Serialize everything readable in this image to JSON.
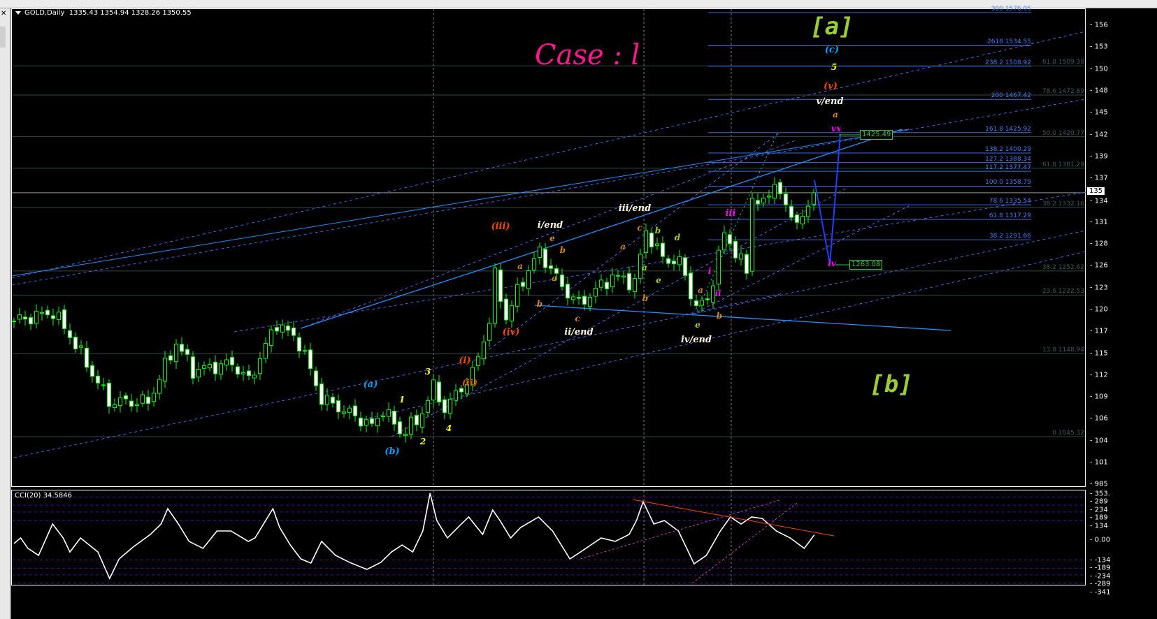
{
  "window": {
    "symbol_title": "GOLD,Daily",
    "ohlc": "1335.43 1354.94 1328.26 1350.55",
    "close_icon": "close-icon"
  },
  "annotation": {
    "case_title": "Case : l"
  },
  "price_axis": {
    "labels": [
      "156",
      "153",
      "150",
      "148",
      "145",
      "142",
      "139",
      "137",
      "134",
      "131",
      "128",
      "126",
      "123",
      "120",
      "117",
      "115",
      "112",
      "109",
      "106",
      "104",
      "101",
      "985"
    ],
    "current_price_label": "135",
    "current_price": 1350.55
  },
  "price_tags": [
    {
      "text": "1425.49",
      "color": "#2ecc40"
    },
    {
      "text": "1263.08",
      "color": "#2ecc40"
    }
  ],
  "fib_projection": [
    {
      "level": "300",
      "price": "1576.05"
    },
    {
      "level": "2618",
      "price": "1534.55"
    },
    {
      "level": "238.2",
      "price": "1508.92"
    },
    {
      "level": "200",
      "price": "1467.42"
    },
    {
      "level": "161.8",
      "price": "1425.92"
    },
    {
      "level": "138.2",
      "price": "1400.29"
    },
    {
      "level": "127.2",
      "price": "1388.34"
    },
    {
      "level": "117.2",
      "price": "1377.47"
    },
    {
      "level": "100.0",
      "price": "1358.79"
    },
    {
      "level": "78.6",
      "price": "1335.54"
    },
    {
      "level": "61.8",
      "price": "1317.29"
    },
    {
      "level": "38.2",
      "price": "1291.66"
    }
  ],
  "fib_retracement": [
    {
      "level": "61.8",
      "price": "1509.38"
    },
    {
      "level": "78.6",
      "price": "1472.89"
    },
    {
      "level": "50.0",
      "price": "1420.77"
    },
    {
      "level": "61.8",
      "price": "1381.29"
    },
    {
      "level": "38.2",
      "price": "1332.16"
    },
    {
      "level": "38.2",
      "price": "1252.62"
    },
    {
      "level": "23.6",
      "price": "1222.53"
    },
    {
      "level": "13.8",
      "price": "1148.94"
    },
    {
      "level": "0",
      "price": "1045.32"
    }
  ],
  "wave_labels": [
    {
      "text": "[a]",
      "color": "#9acd32"
    },
    {
      "text": "[b]",
      "color": "#9acd32"
    },
    {
      "text": "(c)",
      "color": "#00a2ff"
    },
    {
      "text": "5",
      "color": "#ffff00"
    },
    {
      "text": "(v)",
      "color": "#ff4500"
    },
    {
      "text": "v/end",
      "color": "#fff5e0"
    },
    {
      "text": "a",
      "color": "#d4891a"
    },
    {
      "text": "vx",
      "color": "#ff00ff"
    },
    {
      "text": "iv",
      "color": "#ff00ff"
    },
    {
      "text": "(iii)",
      "color": "#ff4500"
    },
    {
      "text": "i/end",
      "color": "#fff5e0"
    },
    {
      "text": "e",
      "color": "#d4891a"
    },
    {
      "text": "b",
      "color": "#d4891a"
    },
    {
      "text": "a",
      "color": "#d4891a"
    },
    {
      "text": "a",
      "color": "#d4891a"
    },
    {
      "text": "b",
      "color": "#d4891a"
    },
    {
      "text": "c",
      "color": "#d4891a"
    },
    {
      "text": "ii/end",
      "color": "#fff5e0"
    },
    {
      "text": "(iv)",
      "color": "#ff4500"
    },
    {
      "text": "(i)",
      "color": "#ff4500"
    },
    {
      "text": "(ii)",
      "color": "#ff4500"
    },
    {
      "text": "3",
      "color": "#ffff00"
    },
    {
      "text": "1",
      "color": "#ffff00"
    },
    {
      "text": "2",
      "color": "#ffff00"
    },
    {
      "text": "4",
      "color": "#ffff00"
    },
    {
      "text": "(a)",
      "color": "#00a2ff"
    },
    {
      "text": "(b)",
      "color": "#00a2ff"
    },
    {
      "text": "iii/end",
      "color": "#fff5e0"
    },
    {
      "text": "c",
      "color": "#d4891a"
    },
    {
      "text": "b",
      "color": "#9acd32"
    },
    {
      "text": "d",
      "color": "#9acd32"
    },
    {
      "text": "a",
      "color": "#d4891a"
    },
    {
      "text": "a",
      "color": "#9acd32"
    },
    {
      "text": "e",
      "color": "#9acd32"
    },
    {
      "text": "b",
      "color": "#d4891a"
    },
    {
      "text": "a",
      "color": "#d4891a"
    },
    {
      "text": "i",
      "color": "#ff00ff"
    },
    {
      "text": "iii",
      "color": "#ff00ff"
    },
    {
      "text": "ii",
      "color": "#ff00ff"
    },
    {
      "text": "e",
      "color": "#9acd32"
    },
    {
      "text": "b",
      "color": "#d4891a"
    },
    {
      "text": "iv/end",
      "color": "#fff5e0"
    }
  ],
  "chart_data": [
    {
      "type": "candlestick",
      "title": "GOLD,Daily",
      "x_unit": "bar index (daily)",
      "ylim": [
        985,
        1590
      ],
      "grid": false,
      "bull_color": "#00ff00",
      "swing_closes": [
        [
          0,
          1190
        ],
        [
          7,
          1201
        ],
        [
          10,
          1172
        ],
        [
          17,
          1089
        ],
        [
          24,
          1089
        ],
        [
          29,
          1163
        ],
        [
          32,
          1128
        ],
        [
          39,
          1137
        ],
        [
          42,
          1115
        ],
        [
          47,
          1188
        ],
        [
          51,
          1163
        ],
        [
          55,
          1093
        ],
        [
          62,
          1067
        ],
        [
          64,
          1058
        ],
        [
          66,
          1080
        ],
        [
          69,
          1051
        ],
        [
          72,
          1063
        ],
        [
          75,
          1107
        ],
        [
          77,
          1080
        ],
        [
          82,
          1124
        ],
        [
          85,
          1190
        ],
        [
          86,
          1246
        ],
        [
          88,
          1194
        ],
        [
          91,
          1242
        ],
        [
          94,
          1277
        ],
        [
          98,
          1233
        ],
        [
          101,
          1211
        ],
        [
          107,
          1246
        ],
        [
          111,
          1238
        ],
        [
          113,
          1303
        ],
        [
          116,
          1268
        ],
        [
          119,
          1264
        ],
        [
          122,
          1207
        ],
        [
          124,
          1216
        ],
        [
          127,
          1299
        ],
        [
          129,
          1277
        ],
        [
          131,
          1251
        ],
        [
          132,
          1347
        ],
        [
          134,
          1334
        ],
        [
          136,
          1366
        ],
        [
          138,
          1329
        ],
        [
          141,
          1314
        ],
        [
          143,
          1350.55
        ]
      ]
    },
    {
      "type": "line",
      "title": "CCI(20) 34.5846",
      "series": [
        {
          "name": "CCI(20)",
          "color": "#ffffff"
        }
      ],
      "ylim": [
        -341,
        353
      ],
      "levels": [
        289,
        234,
        189,
        134,
        0,
        -134,
        -189,
        -234,
        -289
      ],
      "tick_labels": [
        "353.",
        "289",
        "234",
        "189",
        "134",
        "0.00",
        "-134",
        "-189",
        "-234",
        "-289",
        "-341"
      ],
      "points": [
        [
          0,
          -23
        ],
        [
          1.2,
          14
        ],
        [
          2.5,
          -56
        ],
        [
          4.4,
          -103
        ],
        [
          6.9,
          108
        ],
        [
          8.8,
          14
        ],
        [
          10,
          -80
        ],
        [
          11.9,
          14
        ],
        [
          15,
          -80
        ],
        [
          17.1,
          -258
        ],
        [
          18.8,
          -127
        ],
        [
          21.3,
          -47
        ],
        [
          24.4,
          38
        ],
        [
          26.3,
          108
        ],
        [
          27.5,
          211
        ],
        [
          29.4,
          108
        ],
        [
          31.3,
          -9
        ],
        [
          33.8,
          -56
        ],
        [
          36.3,
          61
        ],
        [
          38.8,
          61
        ],
        [
          41.9,
          -9
        ],
        [
          43.1,
          14
        ],
        [
          46.3,
          211
        ],
        [
          47.5,
          85
        ],
        [
          49.4,
          -33
        ],
        [
          51.3,
          -127
        ],
        [
          53.1,
          -155
        ],
        [
          55,
          -9
        ],
        [
          57.5,
          -103
        ],
        [
          60,
          -150
        ],
        [
          63.1,
          -197
        ],
        [
          65.6,
          -150
        ],
        [
          67.5,
          -80
        ],
        [
          69.4,
          -33
        ],
        [
          71.3,
          -80
        ],
        [
          73.1,
          61
        ],
        [
          74.4,
          315
        ],
        [
          75.6,
          131
        ],
        [
          77.5,
          14
        ],
        [
          80,
          108
        ],
        [
          81.3,
          155
        ],
        [
          83.8,
          38
        ],
        [
          85.6,
          202
        ],
        [
          86.9,
          131
        ],
        [
          88.8,
          14
        ],
        [
          90.6,
          85
        ],
        [
          93.8,
          155
        ],
        [
          96.3,
          61
        ],
        [
          99.4,
          -127
        ],
        [
          101.3,
          -80
        ],
        [
          105,
          14
        ],
        [
          107.5,
          -9
        ],
        [
          110,
          38
        ],
        [
          111.3,
          131
        ],
        [
          112.5,
          258
        ],
        [
          114.4,
          108
        ],
        [
          116.3,
          131
        ],
        [
          118.8,
          61
        ],
        [
          120.6,
          -80
        ],
        [
          121.6,
          -160
        ],
        [
          123.8,
          -103
        ],
        [
          126.3,
          61
        ],
        [
          128.1,
          155
        ],
        [
          130,
          108
        ],
        [
          131.9,
          155
        ],
        [
          133.8,
          145
        ],
        [
          136.3,
          61
        ],
        [
          138.8,
          14
        ],
        [
          141.3,
          -56
        ],
        [
          143.1,
          34.6
        ]
      ]
    }
  ]
}
